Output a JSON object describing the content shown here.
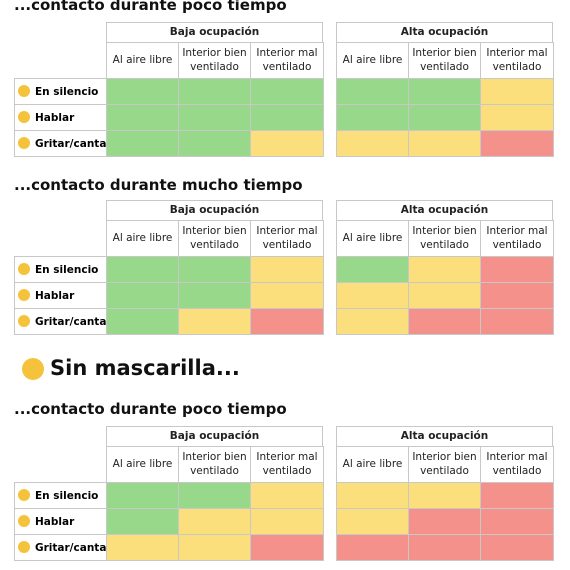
{
  "sections": [
    {
      "heading": "...contacto durante poco tiempo",
      "groups": [
        "Baja ocupación",
        "Alta ocupación"
      ],
      "columns": [
        "Al aire libre",
        "Interior bien ventilado",
        "Interior mal ventilado"
      ],
      "rows": [
        {
          "label": "En silencio",
          "colors": [
            "#97d88a",
            "#97d88a",
            "#97d88a",
            "#97d88a",
            "#97d88a",
            "#fbdf7c"
          ]
        },
        {
          "label": "Hablar",
          "colors": [
            "#97d88a",
            "#97d88a",
            "#97d88a",
            "#97d88a",
            "#97d88a",
            "#fbdf7c"
          ]
        },
        {
          "label": "Gritar/cantar",
          "colors": [
            "#97d88a",
            "#97d88a",
            "#fbdf7c",
            "#fbdf7c",
            "#fbdf7c",
            "#f4918b"
          ]
        }
      ]
    },
    {
      "heading": "...contacto durante mucho tiempo",
      "groups": [
        "Baja ocupación",
        "Alta ocupación"
      ],
      "columns": [
        "Al aire libre",
        "Interior bien ventilado",
        "Interior mal ventilado"
      ],
      "rows": [
        {
          "label": "En silencio",
          "colors": [
            "#97d88a",
            "#97d88a",
            "#fbdf7c",
            "#97d88a",
            "#fbdf7c",
            "#f4918b"
          ]
        },
        {
          "label": "Hablar",
          "colors": [
            "#97d88a",
            "#97d88a",
            "#fbdf7c",
            "#fbdf7c",
            "#fbdf7c",
            "#f4918b"
          ]
        },
        {
          "label": "Gritar/cantar",
          "colors": [
            "#97d88a",
            "#fbdf7c",
            "#f4918b",
            "#fbdf7c",
            "#f4918b",
            "#f4918b"
          ]
        }
      ]
    },
    {
      "heading": "...contacto durante poco tiempo",
      "groups": [
        "Baja ocupación",
        "Alta ocupación"
      ],
      "columns": [
        "Al aire libre",
        "Interior bien ventilado",
        "Interior mal ventilado"
      ],
      "rows": [
        {
          "label": "En silencio",
          "colors": [
            "#97d88a",
            "#97d88a",
            "#fbdf7c",
            "#fbdf7c",
            "#fbdf7c",
            "#f4918b"
          ]
        },
        {
          "label": "Hablar",
          "colors": [
            "#97d88a",
            "#fbdf7c",
            "#fbdf7c",
            "#fbdf7c",
            "#f4918b",
            "#f4918b"
          ]
        },
        {
          "label": "Gritar/cantar",
          "colors": [
            "#fbdf7c",
            "#fbdf7c",
            "#f4918b",
            "#f4918b",
            "#f4918b",
            "#f4918b"
          ]
        }
      ]
    }
  ],
  "interlude": "Sin mascarilla..."
}
